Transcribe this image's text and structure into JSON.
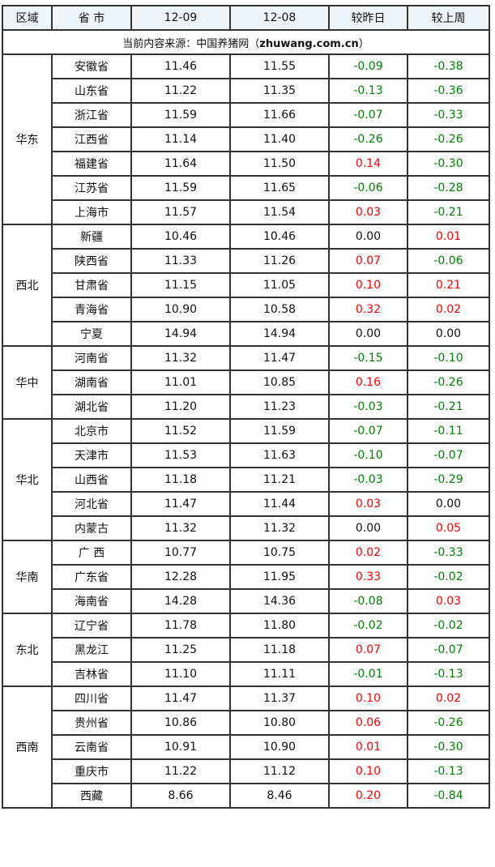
{
  "colors": {
    "up": "#ff0000",
    "down": "#008000",
    "flat": "#111111",
    "header_bg": "#eef3f7",
    "border": "#333333"
  },
  "header": {
    "region": "区域",
    "province": "省 市",
    "date1": "12-09",
    "date2": "12-08",
    "vs_yesterday": "较昨日",
    "vs_last_week": "较上周"
  },
  "source": {
    "prefix": "当前内容来源：中国养猪网（",
    "site": "zhuwang.com.cn",
    "suffix": "）"
  },
  "regions": [
    {
      "name": "华东",
      "rows": [
        [
          "安徽省",
          "11.46",
          "11.55",
          "-0.09",
          "-0.38"
        ],
        [
          "山东省",
          "11.22",
          "11.35",
          "-0.13",
          "-0.36"
        ],
        [
          "浙江省",
          "11.59",
          "11.66",
          "-0.07",
          "-0.33"
        ],
        [
          "江西省",
          "11.14",
          "11.40",
          "-0.26",
          "-0.26"
        ],
        [
          "福建省",
          "11.64",
          "11.50",
          "0.14",
          "-0.30"
        ],
        [
          "江苏省",
          "11.59",
          "11.65",
          "-0.06",
          "-0.28"
        ],
        [
          "上海市",
          "11.57",
          "11.54",
          "0.03",
          "-0.21"
        ]
      ]
    },
    {
      "name": "西北",
      "rows": [
        [
          "新疆",
          "10.46",
          "10.46",
          "0.00",
          "0.01"
        ],
        [
          "陕西省",
          "11.33",
          "11.26",
          "0.07",
          "-0.06"
        ],
        [
          "甘肃省",
          "11.15",
          "11.05",
          "0.10",
          "0.21"
        ],
        [
          "青海省",
          "10.90",
          "10.58",
          "0.32",
          "0.02"
        ],
        [
          "宁夏",
          "14.94",
          "14.94",
          "0.00",
          "0.00"
        ]
      ]
    },
    {
      "name": "华中",
      "rows": [
        [
          "河南省",
          "11.32",
          "11.47",
          "-0.15",
          "-0.10"
        ],
        [
          "湖南省",
          "11.01",
          "10.85",
          "0.16",
          "-0.26"
        ],
        [
          "湖北省",
          "11.20",
          "11.23",
          "-0.03",
          "-0.21"
        ]
      ]
    },
    {
      "name": "华北",
      "rows": [
        [
          "北京市",
          "11.52",
          "11.59",
          "-0.07",
          "-0.11"
        ],
        [
          "天津市",
          "11.53",
          "11.63",
          "-0.10",
          "-0.07"
        ],
        [
          "山西省",
          "11.18",
          "11.21",
          "-0.03",
          "-0.29"
        ],
        [
          "河北省",
          "11.47",
          "11.44",
          "0.03",
          "0.00"
        ],
        [
          "内蒙古",
          "11.32",
          "11.32",
          "0.00",
          "0.05"
        ]
      ]
    },
    {
      "name": "华南",
      "rows": [
        [
          "广 西",
          "10.77",
          "10.75",
          "0.02",
          "-0.33"
        ],
        [
          "广东省",
          "12.28",
          "11.95",
          "0.33",
          "-0.02"
        ],
        [
          "海南省",
          "14.28",
          "14.36",
          "-0.08",
          "0.03"
        ]
      ]
    },
    {
      "name": "东北",
      "rows": [
        [
          "辽宁省",
          "11.78",
          "11.80",
          "-0.02",
          "-0.02"
        ],
        [
          "黑龙江",
          "11.25",
          "11.18",
          "0.07",
          "-0.07"
        ],
        [
          "吉林省",
          "11.10",
          "11.11",
          "-0.01",
          "-0.13"
        ]
      ]
    },
    {
      "name": "西南",
      "rows": [
        [
          "四川省",
          "11.47",
          "11.37",
          "0.10",
          "0.02"
        ],
        [
          "贵州省",
          "10.86",
          "10.80",
          "0.06",
          "-0.26"
        ],
        [
          "云南省",
          "10.91",
          "10.90",
          "0.01",
          "-0.30"
        ],
        [
          "重庆市",
          "11.22",
          "11.12",
          "0.10",
          "-0.13"
        ],
        [
          "西藏",
          "8.66",
          "8.46",
          "0.20",
          "-0.84"
        ]
      ]
    }
  ]
}
